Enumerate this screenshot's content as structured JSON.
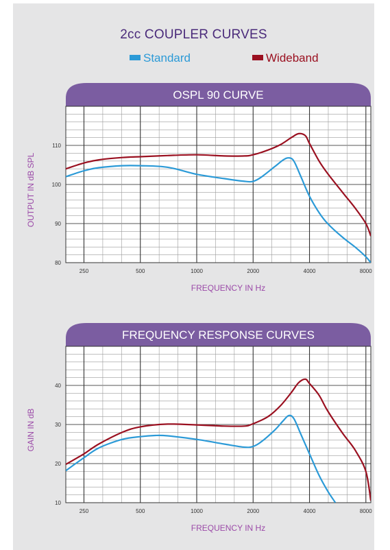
{
  "title": "2cc COUPLER CURVES",
  "legend": [
    {
      "name": "Standard",
      "color": "#2b9ad7"
    },
    {
      "name": "Wideband",
      "color": "#9a1020"
    }
  ],
  "chart_data": [
    {
      "type": "line",
      "title": "OSPL 90 CURVE",
      "xlabel": "FREQUENCY IN Hz",
      "ylabel": "OUTPUT IN dB SPL",
      "xscale": "log",
      "xlim": [
        200,
        8500
      ],
      "ylim": [
        80,
        120
      ],
      "xticks": [
        250,
        500,
        1000,
        2000,
        4000,
        8000
      ],
      "yticks": [
        80,
        90,
        100,
        110
      ],
      "grid": true,
      "series": [
        {
          "name": "Standard",
          "color": "#2b9ad7",
          "x": [
            200,
            250,
            300,
            400,
            500,
            700,
            1000,
            1400,
            1800,
            2000,
            2200,
            2600,
            2900,
            3100,
            3300,
            3600,
            4000,
            4500,
            5000,
            6000,
            7000,
            8000,
            8500
          ],
          "y": [
            102,
            103.5,
            104.3,
            104.8,
            104.8,
            104.4,
            102.6,
            101.5,
            100.8,
            100.8,
            101.8,
            104.5,
            106.3,
            106.8,
            106.0,
            102.0,
            97.0,
            92.8,
            90.0,
            86.5,
            84.0,
            81.5,
            80.0
          ]
        },
        {
          "name": "Wideband",
          "color": "#9a1020",
          "x": [
            200,
            250,
            300,
            400,
            500,
            700,
            1000,
            1400,
            1800,
            2000,
            2400,
            2800,
            3200,
            3500,
            3800,
            4000,
            4500,
            5000,
            6000,
            7000,
            8000,
            8500
          ],
          "y": [
            104,
            105.5,
            106.3,
            106.9,
            107.1,
            107.4,
            107.6,
            107.3,
            107.3,
            107.6,
            108.8,
            110.2,
            112.0,
            113.0,
            112.5,
            110.5,
            106.0,
            102.8,
            98.0,
            94.0,
            90.0,
            86.8
          ]
        }
      ]
    },
    {
      "type": "line",
      "title": "FREQUENCY RESPONSE CURVES",
      "xlabel": "FREQUENCY IN Hz",
      "ylabel": "GAIN IN dB",
      "xscale": "log",
      "xlim": [
        200,
        8500
      ],
      "ylim": [
        10,
        50
      ],
      "xticks": [
        250,
        500,
        1000,
        2000,
        4000,
        8000
      ],
      "yticks": [
        10,
        20,
        30,
        40
      ],
      "grid": true,
      "series": [
        {
          "name": "Standard",
          "color": "#2b9ad7",
          "x": [
            200,
            250,
            300,
            400,
            500,
            600,
            700,
            1000,
            1400,
            1800,
            2000,
            2200,
            2600,
            2900,
            3100,
            3300,
            3600,
            4000,
            4500,
            5000,
            5500
          ],
          "y": [
            18.2,
            21.5,
            24.0,
            26.2,
            26.9,
            27.2,
            27.1,
            26.2,
            25.0,
            24.2,
            24.4,
            25.5,
            28.5,
            31.0,
            32.3,
            31.5,
            27.5,
            22.5,
            17.0,
            13.0,
            10.0
          ]
        },
        {
          "name": "Wideband",
          "color": "#9a1020",
          "x": [
            200,
            250,
            300,
            400,
            500,
            700,
            1000,
            1400,
            1800,
            2000,
            2400,
            2800,
            3200,
            3500,
            3800,
            4000,
            4500,
            5000,
            6000,
            7000,
            8000,
            8500
          ],
          "y": [
            19.8,
            22.5,
            25.0,
            28.0,
            29.4,
            30.1,
            29.9,
            29.6,
            29.6,
            30.2,
            32.0,
            34.8,
            38.2,
            40.7,
            41.6,
            40.5,
            37.5,
            33.5,
            27.8,
            23.5,
            18.0,
            10.5
          ]
        }
      ]
    }
  ]
}
